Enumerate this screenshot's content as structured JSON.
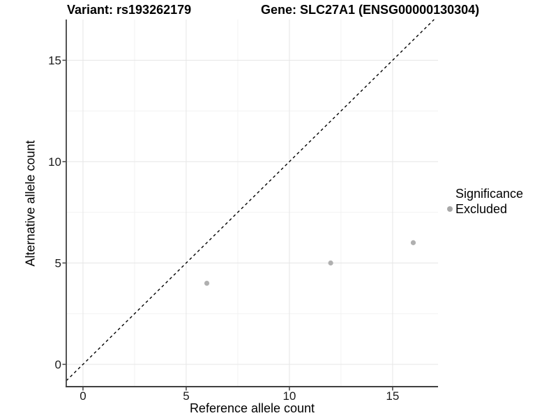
{
  "chart_data": {
    "type": "scatter",
    "title_left": "Variant: rs193262179",
    "title_right": "Gene: SLC27A1 (ENSG00000130304)",
    "xlabel": "Reference allele count",
    "ylabel": "Alternative allele count",
    "xlim": [
      -0.81,
      17.2
    ],
    "ylim": [
      -1.1,
      17.01
    ],
    "x_ticks": [
      0,
      5,
      10,
      15
    ],
    "y_ticks": [
      0,
      5,
      10,
      15
    ],
    "x_minor_ticks": [
      2.5,
      7.5,
      12.5
    ],
    "y_minor_ticks": [
      2.5,
      7.5,
      12.5
    ],
    "grid": {
      "major_color": "#e6e6e6",
      "minor_color": "#f2f2f2"
    },
    "axis_color": "#404040",
    "identity_line": {
      "equation": "y = x",
      "style": "dashed",
      "color": "#000000"
    },
    "series": [
      {
        "name": "Excluded",
        "color": "#b0b0b0",
        "marker": "circle",
        "points": [
          [
            6,
            4
          ],
          [
            12,
            5
          ],
          [
            16,
            6
          ]
        ]
      }
    ],
    "legend": {
      "title": "Significance",
      "position": "right",
      "items": [
        {
          "label": "Excluded",
          "color": "#a8a8a8",
          "marker": "circle"
        }
      ]
    }
  }
}
